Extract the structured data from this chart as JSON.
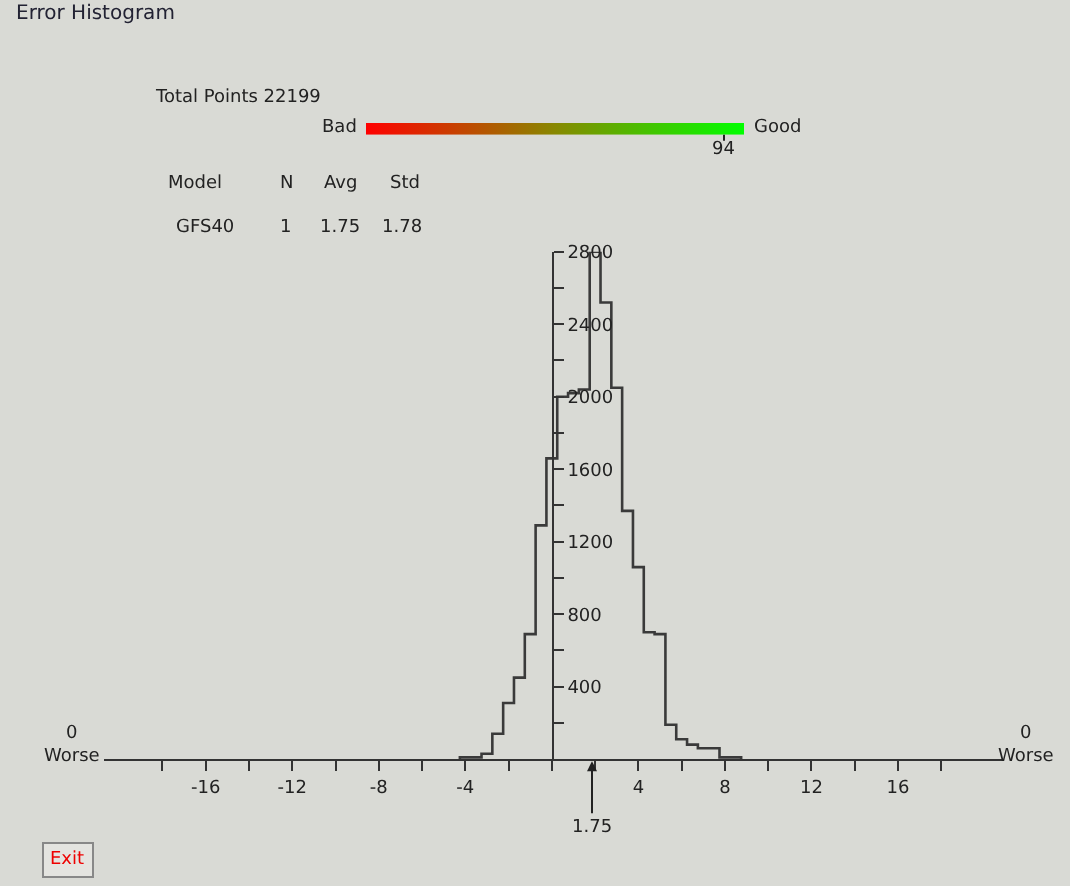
{
  "chart_data": {
    "type": "histogram",
    "title": "Error Histogram",
    "bins": [
      -4.25,
      -3.75,
      -3.25,
      -2.75,
      -2.25,
      -1.75,
      -1.25,
      -0.75,
      -0.25,
      0.25,
      0.75,
      1.25,
      1.75,
      2.25,
      2.75,
      3.25,
      3.75,
      4.25,
      4.75,
      5.25,
      5.75,
      6.25,
      6.75,
      7.25,
      7.75,
      8.25,
      8.75
    ],
    "values": [
      10,
      10,
      30,
      140,
      310,
      450,
      690,
      1290,
      1660,
      2000,
      2020,
      2040,
      2800,
      2520,
      2050,
      1370,
      1060,
      700,
      690,
      190,
      110,
      80,
      60,
      60,
      10,
      10
    ],
    "color": "#3a3a3a",
    "xlim": [
      -20.7,
      20.9
    ],
    "ylim": [
      0,
      2800
    ],
    "xticks": [
      {
        "value": -18,
        "label": null
      },
      {
        "value": -16,
        "label": "-16"
      },
      {
        "value": -14,
        "label": null
      },
      {
        "value": -12,
        "label": "-12"
      },
      {
        "value": -10,
        "label": null
      },
      {
        "value": -8,
        "label": "-8"
      },
      {
        "value": -6,
        "label": null
      },
      {
        "value": -4,
        "label": "-4"
      },
      {
        "value": -2,
        "label": null
      },
      {
        "value": 0,
        "label": null
      },
      {
        "value": 2,
        "label": null
      },
      {
        "value": 4,
        "label": "4"
      },
      {
        "value": 6,
        "label": null
      },
      {
        "value": 8,
        "label": "8"
      },
      {
        "value": 10,
        "label": null
      },
      {
        "value": 12,
        "label": "12"
      },
      {
        "value": 14,
        "label": null
      },
      {
        "value": 16,
        "label": "16"
      },
      {
        "value": 18,
        "label": null
      }
    ],
    "yticks": [
      {
        "value": 200,
        "label": null
      },
      400,
      {
        "value": 600,
        "label": null
      },
      800,
      {
        "value": 1000,
        "label": null
      },
      1200,
      {
        "value": 1400,
        "label": null
      },
      1600,
      {
        "value": 1800,
        "label": null
      },
      2000,
      {
        "value": 2200,
        "label": null
      },
      2400,
      {
        "value": 2600,
        "label": null
      },
      2800
    ],
    "grid": false,
    "annotations": [
      "Total Points 22199",
      "Bad",
      "Good",
      "94",
      "Model",
      "N",
      "Avg",
      "Std",
      "GFS40",
      "1",
      "1.75",
      "1.78",
      "0\nWorse",
      "0\nWorse",
      "1.75",
      "Exit"
    ]
  }
}
